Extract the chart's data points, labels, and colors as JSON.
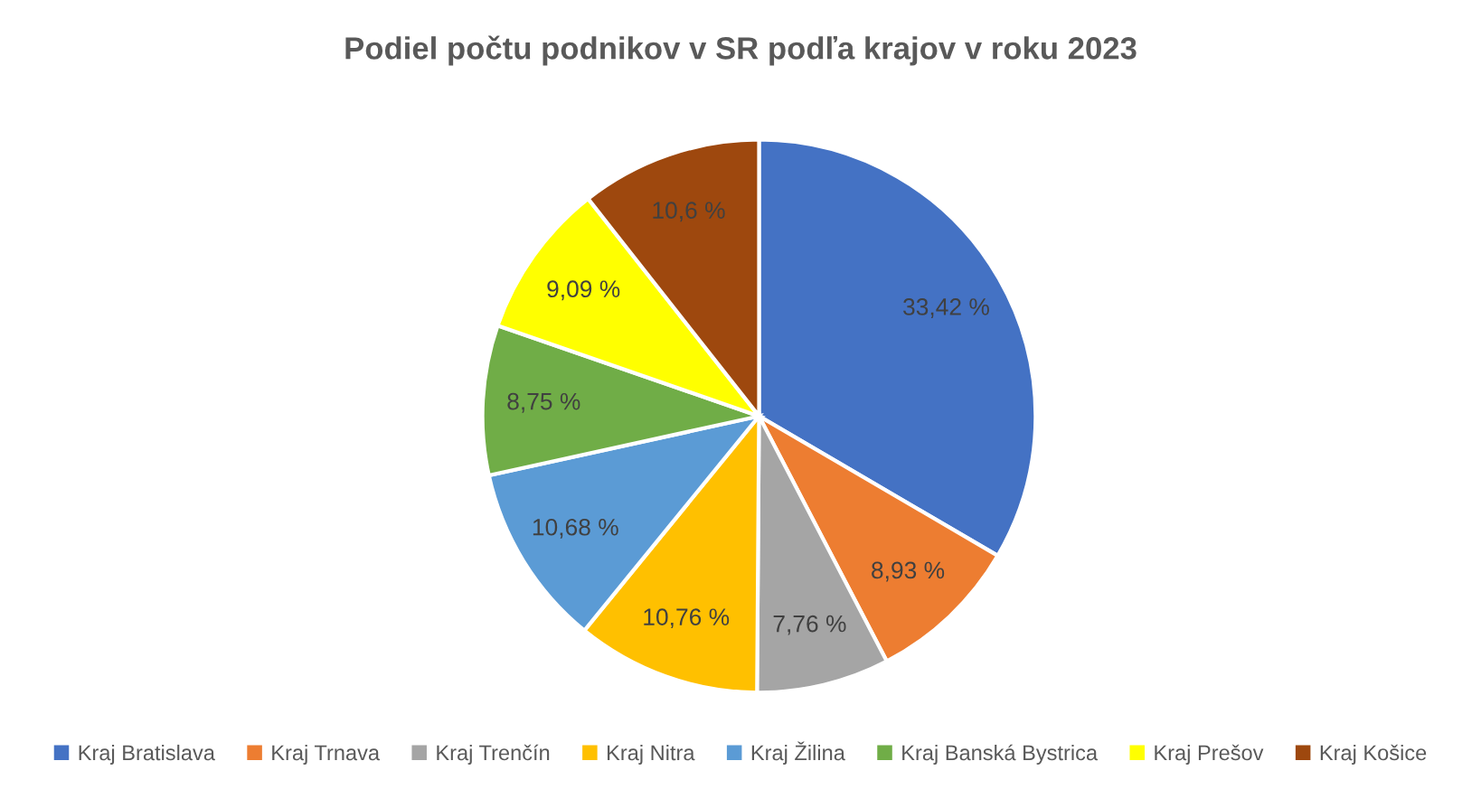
{
  "chart_data": {
    "type": "pie",
    "title": "Podiel počtu podnikov v SR podľa krajov v roku 2023",
    "categories": [
      "Kraj Bratislava",
      "Kraj Trnava",
      "Kraj Trenčín",
      "Kraj Nitra",
      "Kraj Žilina",
      "Kraj Banská Bystrica",
      "Kraj Prešov",
      "Kraj Košice"
    ],
    "values": [
      33.42,
      8.93,
      7.76,
      10.76,
      10.68,
      8.75,
      9.09,
      10.6
    ],
    "colors": [
      "#4472c4",
      "#ed7d31",
      "#a5a5a5",
      "#ffc000",
      "#5b9bd5",
      "#70ad47",
      "#ffff00",
      "#9e480e"
    ],
    "value_labels": [
      "33,42 %",
      "8,93 %",
      "7,76 %",
      "10,76 %",
      "10,68 %",
      "8,75 %",
      "9,09 %",
      "10,6 %"
    ],
    "legend": "bottom"
  }
}
